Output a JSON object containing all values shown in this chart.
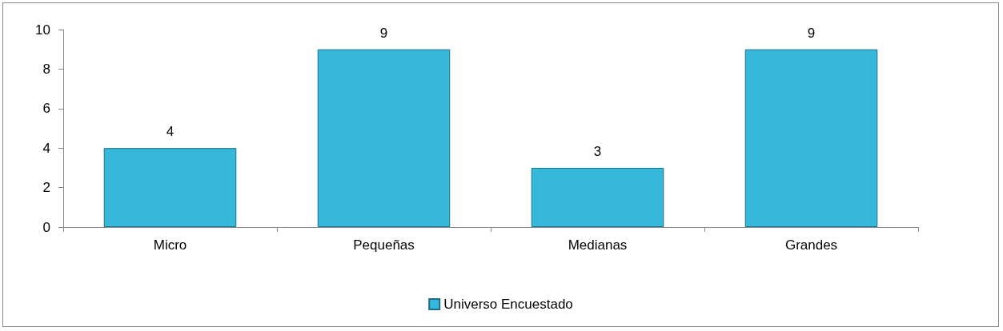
{
  "chart_data": {
    "type": "bar",
    "categories": [
      "Micro",
      "Pequeñas",
      "Medianas",
      "Grandes"
    ],
    "series": [
      {
        "name": "Universo Encuestado",
        "color": "#35b8da",
        "values": [
          4,
          9,
          3,
          9
        ]
      }
    ],
    "ylim": [
      0,
      10
    ],
    "yticks": [
      0,
      2,
      4,
      6,
      8,
      10
    ],
    "grid": false,
    "legend": "bottom",
    "data_labels": true
  }
}
